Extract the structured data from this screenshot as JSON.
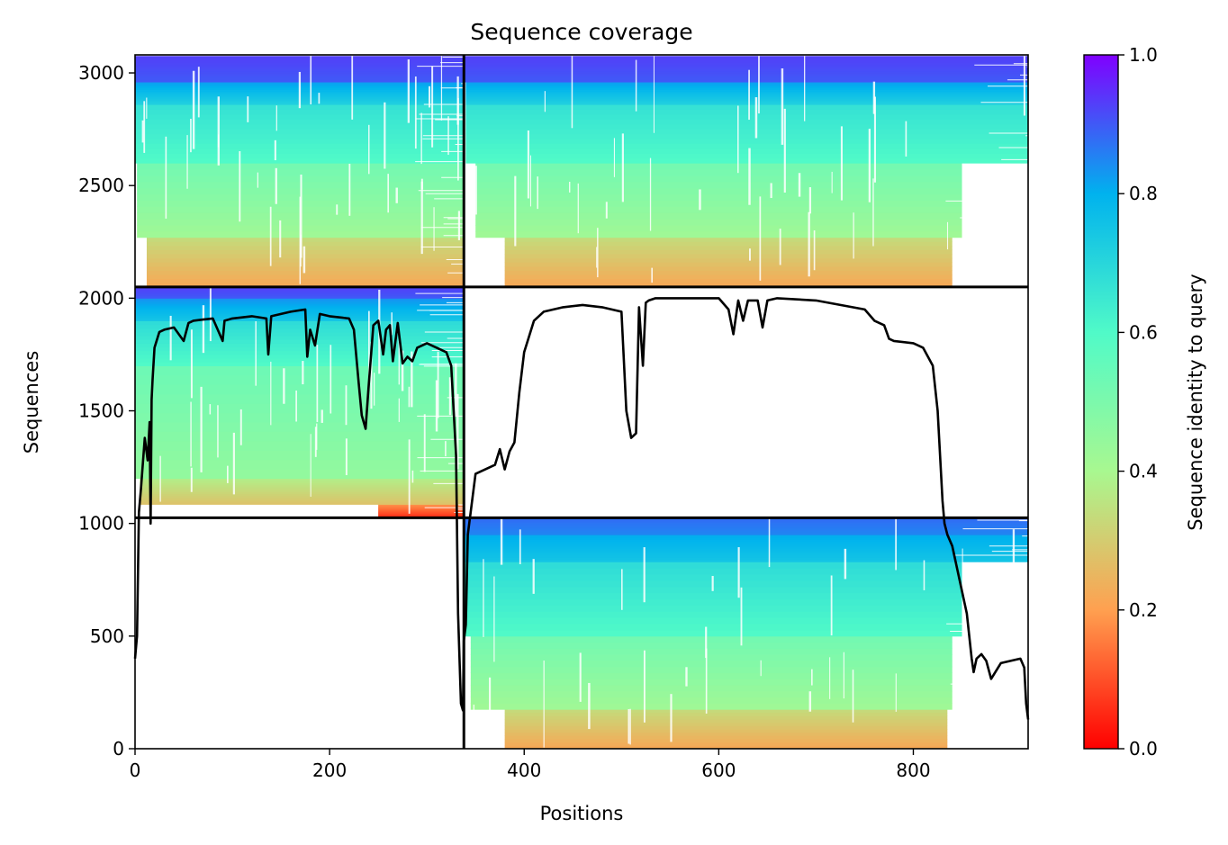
{
  "chart_data": {
    "type": "heatmap",
    "title": "Sequence coverage",
    "xlabel": "Positions",
    "ylabel": "Sequences",
    "colorbar_label": "Sequence identity to query",
    "xlim": [
      0,
      918
    ],
    "ylim": [
      0,
      3080
    ],
    "x_ticks": [
      {
        "v": 0,
        "label": "0"
      },
      {
        "v": 200,
        "label": "200"
      },
      {
        "v": 400,
        "label": "400"
      },
      {
        "v": 600,
        "label": "600"
      },
      {
        "v": 800,
        "label": "800"
      }
    ],
    "y_ticks": [
      {
        "v": 0,
        "label": "0"
      },
      {
        "v": 500,
        "label": "500"
      },
      {
        "v": 1000,
        "label": "1000"
      },
      {
        "v": 1500,
        "label": "1500"
      },
      {
        "v": 2000,
        "label": "2000"
      },
      {
        "v": 2500,
        "label": "2500"
      },
      {
        "v": 3000,
        "label": "3000"
      }
    ],
    "colorbar_ticks": [
      {
        "v": 0.0,
        "label": "0.0"
      },
      {
        "v": 0.2,
        "label": "0.2"
      },
      {
        "v": 0.4,
        "label": "0.4"
      },
      {
        "v": 0.6,
        "label": "0.6"
      },
      {
        "v": 0.8,
        "label": "0.8"
      },
      {
        "v": 1.0,
        "label": "1.0"
      }
    ],
    "colormap": [
      "#ff0000",
      "#ffa050",
      "#a8f890",
      "#50fac8",
      "#00b2ee",
      "#8000ff"
    ],
    "chain_boundary_x": 338,
    "block_boundaries_y": [
      1025,
      2050
    ],
    "blocks": [
      {
        "name": "block-top-left",
        "x": [
          0,
          338
        ],
        "y": [
          2050,
          3075
        ],
        "bands": [
          {
            "y": [
              2050,
              2270
            ],
            "identity": 0.22,
            "x": [
              12,
              338
            ]
          },
          {
            "y": [
              2270,
              2600
            ],
            "identity": 0.42,
            "x": [
              2,
              338
            ]
          },
          {
            "y": [
              2600,
              2860
            ],
            "identity": 0.6,
            "x": [
              0,
              338
            ]
          },
          {
            "y": [
              2860,
              2960
            ],
            "identity": 0.72,
            "x": [
              0,
              338
            ]
          },
          {
            "y": [
              2960,
              3075
            ],
            "identity": 0.9,
            "x": [
              0,
              338
            ]
          }
        ]
      },
      {
        "name": "block-top-right",
        "x": [
          338,
          918
        ],
        "y": [
          2050,
          3075
        ],
        "bands": [
          {
            "y": [
              2050,
              2270
            ],
            "identity": 0.22,
            "x": [
              380,
              840
            ]
          },
          {
            "y": [
              2270,
              2600
            ],
            "identity": 0.42,
            "x": [
              350,
              850
            ]
          },
          {
            "y": [
              2600,
              2860
            ],
            "identity": 0.6,
            "x": [
              340,
              918
            ]
          },
          {
            "y": [
              2860,
              2960
            ],
            "identity": 0.72,
            "x": [
              340,
              918
            ]
          },
          {
            "y": [
              2960,
              3075
            ],
            "identity": 0.9,
            "x": [
              338,
              918
            ]
          }
        ]
      },
      {
        "name": "block-middle-left",
        "x": [
          0,
          338
        ],
        "y": [
          1025,
          2050
        ],
        "bands": [
          {
            "y": [
              1025,
              1085
            ],
            "identity": 0.05,
            "x": [
              250,
              338
            ]
          },
          {
            "y": [
              1085,
              1200
            ],
            "identity": 0.28,
            "x": [
              5,
              338
            ]
          },
          {
            "y": [
              1200,
              1700
            ],
            "identity": 0.45,
            "x": [
              0,
              338
            ]
          },
          {
            "y": [
              1700,
              1900
            ],
            "identity": 0.6,
            "x": [
              0,
              338
            ]
          },
          {
            "y": [
              1900,
              2000
            ],
            "identity": 0.75,
            "x": [
              0,
              338
            ]
          },
          {
            "y": [
              2000,
              2050
            ],
            "identity": 0.9,
            "x": [
              0,
              338
            ]
          }
        ]
      },
      {
        "name": "block-bottom-right",
        "x": [
          338,
          918
        ],
        "y": [
          0,
          1025
        ],
        "bands": [
          {
            "y": [
              0,
              175
            ],
            "identity": 0.22,
            "x": [
              380,
              835
            ]
          },
          {
            "y": [
              175,
              500
            ],
            "identity": 0.42,
            "x": [
              345,
              840
            ]
          },
          {
            "y": [
              500,
              830
            ],
            "identity": 0.6,
            "x": [
              338,
              850
            ]
          },
          {
            "y": [
              830,
              950
            ],
            "identity": 0.75,
            "x": [
              338,
              918
            ]
          },
          {
            "y": [
              950,
              1025
            ],
            "identity": 0.85,
            "x": [
              338,
              918
            ]
          }
        ]
      }
    ],
    "coverage_line": {
      "x": [
        0,
        2,
        4,
        6,
        10,
        13,
        15,
        16,
        17,
        18,
        20,
        25,
        30,
        40,
        50,
        55,
        60,
        70,
        80,
        90,
        92,
        100,
        120,
        135,
        137,
        140,
        160,
        175,
        177,
        180,
        185,
        190,
        200,
        220,
        225,
        230,
        233,
        237,
        240,
        245,
        250,
        255,
        258,
        262,
        265,
        270,
        275,
        280,
        285,
        290,
        300,
        320,
        325,
        330,
        332,
        335,
        337,
        338,
        340,
        342,
        345,
        350,
        355,
        360,
        370,
        375,
        380,
        385,
        390,
        395,
        400,
        410,
        420,
        440,
        460,
        480,
        500,
        505,
        510,
        515,
        518,
        522,
        525,
        528,
        535,
        550,
        600,
        610,
        615,
        620,
        625,
        630,
        640,
        645,
        650,
        660,
        700,
        750,
        760,
        770,
        775,
        780,
        800,
        810,
        820,
        825,
        830,
        832,
        835,
        840,
        850,
        855,
        860,
        862,
        865,
        870,
        875,
        880,
        890,
        900,
        910,
        914,
        916,
        918
      ],
      "y": [
        400,
        500,
        1050,
        1150,
        1380,
        1280,
        1450,
        1000,
        1550,
        1640,
        1780,
        1850,
        1860,
        1870,
        1810,
        1890,
        1900,
        1905,
        1910,
        1810,
        1900,
        1910,
        1920,
        1910,
        1750,
        1920,
        1940,
        1950,
        1740,
        1860,
        1790,
        1930,
        1920,
        1910,
        1860,
        1620,
        1480,
        1420,
        1600,
        1880,
        1900,
        1750,
        1860,
        1880,
        1720,
        1890,
        1710,
        1740,
        1720,
        1780,
        1800,
        1760,
        1700,
        1300,
        600,
        200,
        170,
        480,
        550,
        950,
        1050,
        1220,
        1230,
        1240,
        1260,
        1330,
        1240,
        1320,
        1360,
        1580,
        1760,
        1900,
        1940,
        1960,
        1970,
        1960,
        1940,
        1500,
        1380,
        1400,
        1960,
        1700,
        1980,
        1990,
        2000,
        2000,
        2000,
        1950,
        1840,
        1990,
        1900,
        1990,
        1990,
        1870,
        1990,
        2000,
        1990,
        1950,
        1900,
        1880,
        1820,
        1810,
        1800,
        1780,
        1700,
        1500,
        1100,
        1000,
        950,
        900,
        700,
        600,
        400,
        340,
        400,
        420,
        390,
        310,
        380,
        390,
        400,
        360,
        200,
        130
      ]
    }
  }
}
